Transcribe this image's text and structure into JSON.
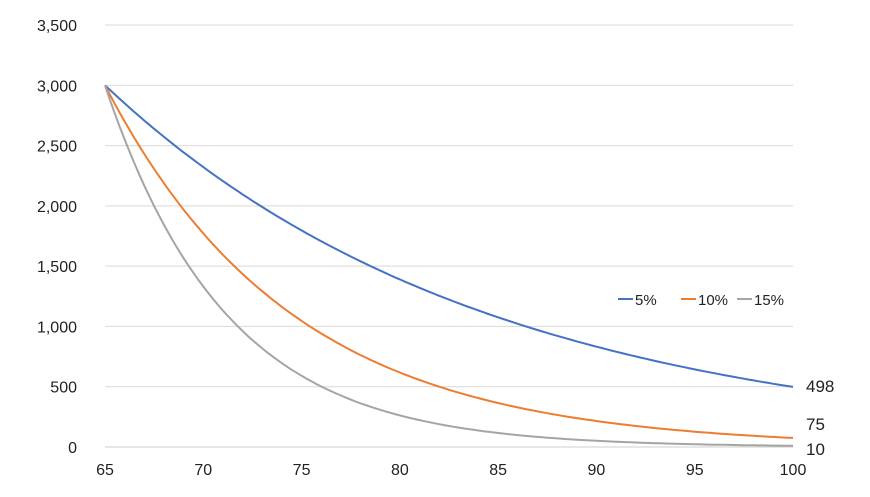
{
  "chart_data": {
    "type": "line",
    "title": "",
    "xlabel": "",
    "ylabel": "",
    "xlim": [
      65,
      100
    ],
    "ylim": [
      0,
      3500
    ],
    "x_ticks": [
      "65",
      "70",
      "75",
      "80",
      "85",
      "90",
      "95",
      "100"
    ],
    "y_ticks": [
      "0",
      "500",
      "1,000",
      "1,500",
      "2,000",
      "2,500",
      "3,000",
      "3,500"
    ],
    "grid": true,
    "legend_position": "center-right",
    "start": {
      "x": 65,
      "y": 3000
    },
    "series": [
      {
        "name": "5%",
        "rate": 0.05,
        "color": "#4472C4",
        "end_value": 498,
        "end_label": "498"
      },
      {
        "name": "10%",
        "rate": 0.1,
        "color": "#ED7D31",
        "end_value": 75,
        "end_label": "75"
      },
      {
        "name": "15%",
        "rate": 0.15,
        "color": "#A5A5A5",
        "end_value": 10,
        "end_label": "10"
      }
    ]
  }
}
